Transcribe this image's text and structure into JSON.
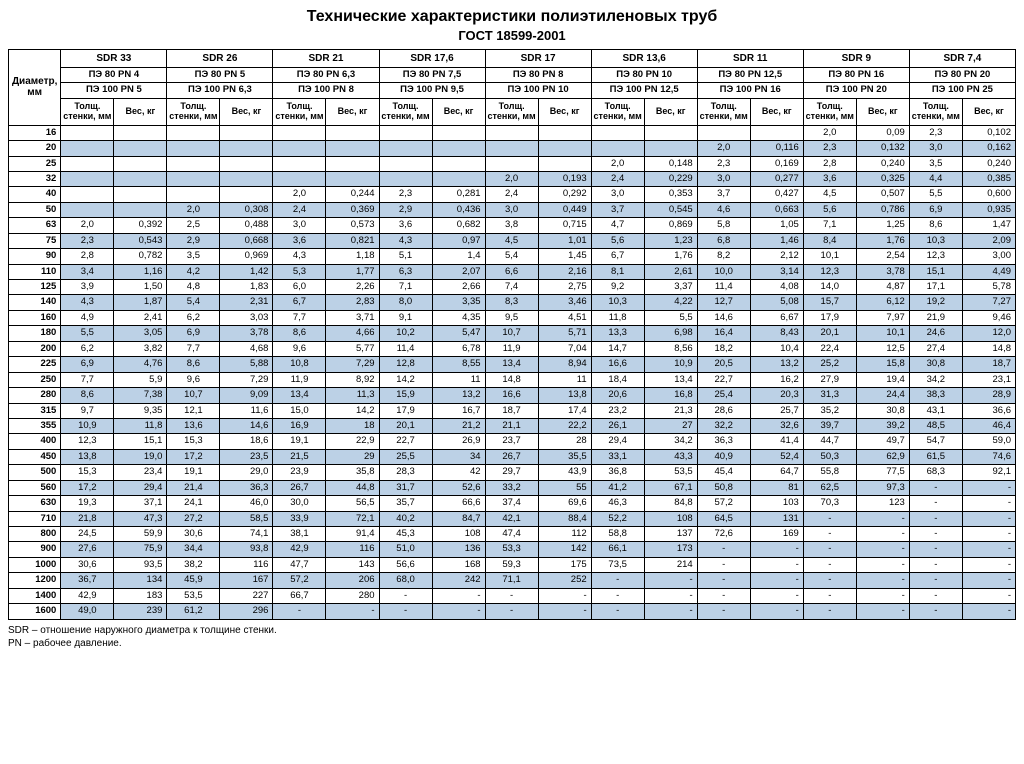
{
  "title": "Технические характеристики полиэтиленовых труб",
  "subtitle": "ГОСТ 18599-2001",
  "diam_header": "Диаметр, мм",
  "thick_header": "Толщ. стенки, мм",
  "weight_header": "Вес, кг",
  "footer": [
    "SDR – отношение наружного диаметра к толщине стенки.",
    "PN – рабочее давление."
  ],
  "colors": {
    "band": "#bcd1e6",
    "border": "#000000",
    "background": "#ffffff"
  },
  "sdr": [
    "SDR 33",
    "SDR 26",
    "SDR 21",
    "SDR 17,6",
    "SDR 17",
    "SDR 13,6",
    "SDR 11",
    "SDR 9",
    "SDR 7,4"
  ],
  "pe80": [
    "ПЭ 80 PN 4",
    "ПЭ 80 PN 5",
    "ПЭ 80 PN 6,3",
    "ПЭ 80 PN 7,5",
    "ПЭ 80 PN 8",
    "ПЭ 80 PN 10",
    "ПЭ 80 PN 12,5",
    "ПЭ 80 PN 16",
    "ПЭ 80 PN 20"
  ],
  "pe100": [
    "ПЭ 100 PN 5",
    "ПЭ 100 PN 6,3",
    "ПЭ 100 PN 8",
    "ПЭ 100 PN 9,5",
    "ПЭ 100 PN 10",
    "ПЭ 100 PN 12,5",
    "ПЭ 100 PN 16",
    "ПЭ 100 PN 20",
    "ПЭ 100 PN 25"
  ],
  "rows": [
    {
      "d": "16",
      "band": false,
      "v": [
        "",
        "",
        "",
        "",
        "",
        "",
        "",
        "",
        "",
        "",
        "",
        "",
        "",
        "",
        "2,0",
        "0,09",
        "2,3",
        "0,102"
      ]
    },
    {
      "d": "20",
      "band": true,
      "v": [
        "",
        "",
        "",
        "",
        "",
        "",
        "",
        "",
        "",
        "",
        "",
        "",
        "2,0",
        "0,116",
        "2,3",
        "0,132",
        "3,0",
        "0,162"
      ]
    },
    {
      "d": "25",
      "band": false,
      "v": [
        "",
        "",
        "",
        "",
        "",
        "",
        "",
        "",
        "",
        "",
        "2,0",
        "0,148",
        "2,3",
        "0,169",
        "2,8",
        "0,240",
        "3,5",
        "0,240"
      ]
    },
    {
      "d": "32",
      "band": true,
      "v": [
        "",
        "",
        "",
        "",
        "",
        "",
        "",
        "",
        "2,0",
        "0,193",
        "2,4",
        "0,229",
        "3,0",
        "0,277",
        "3,6",
        "0,325",
        "4,4",
        "0,385"
      ]
    },
    {
      "d": "40",
      "band": false,
      "v": [
        "",
        "",
        "",
        "",
        "2,0",
        "0,244",
        "2,3",
        "0,281",
        "2,4",
        "0,292",
        "3,0",
        "0,353",
        "3,7",
        "0,427",
        "4,5",
        "0,507",
        "5,5",
        "0,600"
      ]
    },
    {
      "d": "50",
      "band": true,
      "v": [
        "",
        "",
        "2,0",
        "0,308",
        "2,4",
        "0,369",
        "2,9",
        "0,436",
        "3,0",
        "0,449",
        "3,7",
        "0,545",
        "4,6",
        "0,663",
        "5,6",
        "0,786",
        "6,9",
        "0,935"
      ]
    },
    {
      "d": "63",
      "band": false,
      "v": [
        "2,0",
        "0,392",
        "2,5",
        "0,488",
        "3,0",
        "0,573",
        "3,6",
        "0,682",
        "3,8",
        "0,715",
        "4,7",
        "0,869",
        "5,8",
        "1,05",
        "7,1",
        "1,25",
        "8,6",
        "1,47"
      ]
    },
    {
      "d": "75",
      "band": true,
      "v": [
        "2,3",
        "0,543",
        "2,9",
        "0,668",
        "3,6",
        "0,821",
        "4,3",
        "0,97",
        "4,5",
        "1,01",
        "5,6",
        "1,23",
        "6,8",
        "1,46",
        "8,4",
        "1,76",
        "10,3",
        "2,09"
      ]
    },
    {
      "d": "90",
      "band": false,
      "v": [
        "2,8",
        "0,782",
        "3,5",
        "0,969",
        "4,3",
        "1,18",
        "5,1",
        "1,4",
        "5,4",
        "1,45",
        "6,7",
        "1,76",
        "8,2",
        "2,12",
        "10,1",
        "2,54",
        "12,3",
        "3,00"
      ]
    },
    {
      "d": "110",
      "band": true,
      "v": [
        "3,4",
        "1,16",
        "4,2",
        "1,42",
        "5,3",
        "1,77",
        "6,3",
        "2,07",
        "6,6",
        "2,16",
        "8,1",
        "2,61",
        "10,0",
        "3,14",
        "12,3",
        "3,78",
        "15,1",
        "4,49"
      ]
    },
    {
      "d": "125",
      "band": false,
      "v": [
        "3,9",
        "1,50",
        "4,8",
        "1,83",
        "6,0",
        "2,26",
        "7,1",
        "2,66",
        "7,4",
        "2,75",
        "9,2",
        "3,37",
        "11,4",
        "4,08",
        "14,0",
        "4,87",
        "17,1",
        "5,78"
      ]
    },
    {
      "d": "140",
      "band": true,
      "v": [
        "4,3",
        "1,87",
        "5,4",
        "2,31",
        "6,7",
        "2,83",
        "8,0",
        "3,35",
        "8,3",
        "3,46",
        "10,3",
        "4,22",
        "12,7",
        "5,08",
        "15,7",
        "6,12",
        "19,2",
        "7,27"
      ]
    },
    {
      "d": "160",
      "band": false,
      "v": [
        "4,9",
        "2,41",
        "6,2",
        "3,03",
        "7,7",
        "3,71",
        "9,1",
        "4,35",
        "9,5",
        "4,51",
        "11,8",
        "5,5",
        "14,6",
        "6,67",
        "17,9",
        "7,97",
        "21,9",
        "9,46"
      ]
    },
    {
      "d": "180",
      "band": true,
      "v": [
        "5,5",
        "3,05",
        "6,9",
        "3,78",
        "8,6",
        "4,66",
        "10,2",
        "5,47",
        "10,7",
        "5,71",
        "13,3",
        "6,98",
        "16,4",
        "8,43",
        "20,1",
        "10,1",
        "24,6",
        "12,0"
      ]
    },
    {
      "d": "200",
      "band": false,
      "v": [
        "6,2",
        "3,82",
        "7,7",
        "4,68",
        "9,6",
        "5,77",
        "11,4",
        "6,78",
        "11,9",
        "7,04",
        "14,7",
        "8,56",
        "18,2",
        "10,4",
        "22,4",
        "12,5",
        "27,4",
        "14,8"
      ]
    },
    {
      "d": "225",
      "band": true,
      "v": [
        "6,9",
        "4,76",
        "8,6",
        "5,88",
        "10,8",
        "7,29",
        "12,8",
        "8,55",
        "13,4",
        "8,94",
        "16,6",
        "10,9",
        "20,5",
        "13,2",
        "25,2",
        "15,8",
        "30,8",
        "18,7"
      ]
    },
    {
      "d": "250",
      "band": false,
      "v": [
        "7,7",
        "5,9",
        "9,6",
        "7,29",
        "11,9",
        "8,92",
        "14,2",
        "11",
        "14,8",
        "11",
        "18,4",
        "13,4",
        "22,7",
        "16,2",
        "27,9",
        "19,4",
        "34,2",
        "23,1"
      ]
    },
    {
      "d": "280",
      "band": true,
      "v": [
        "8,6",
        "7,38",
        "10,7",
        "9,09",
        "13,4",
        "11,3",
        "15,9",
        "13,2",
        "16,6",
        "13,8",
        "20,6",
        "16,8",
        "25,4",
        "20,3",
        "31,3",
        "24,4",
        "38,3",
        "28,9"
      ]
    },
    {
      "d": "315",
      "band": false,
      "v": [
        "9,7",
        "9,35",
        "12,1",
        "11,6",
        "15,0",
        "14,2",
        "17,9",
        "16,7",
        "18,7",
        "17,4",
        "23,2",
        "21,3",
        "28,6",
        "25,7",
        "35,2",
        "30,8",
        "43,1",
        "36,6"
      ]
    },
    {
      "d": "355",
      "band": true,
      "v": [
        "10,9",
        "11,8",
        "13,6",
        "14,6",
        "16,9",
        "18",
        "20,1",
        "21,2",
        "21,1",
        "22,2",
        "26,1",
        "27",
        "32,2",
        "32,6",
        "39,7",
        "39,2",
        "48,5",
        "46,4"
      ]
    },
    {
      "d": "400",
      "band": false,
      "v": [
        "12,3",
        "15,1",
        "15,3",
        "18,6",
        "19,1",
        "22,9",
        "22,7",
        "26,9",
        "23,7",
        "28",
        "29,4",
        "34,2",
        "36,3",
        "41,4",
        "44,7",
        "49,7",
        "54,7",
        "59,0"
      ]
    },
    {
      "d": "450",
      "band": true,
      "v": [
        "13,8",
        "19,0",
        "17,2",
        "23,5",
        "21,5",
        "29",
        "25,5",
        "34",
        "26,7",
        "35,5",
        "33,1",
        "43,3",
        "40,9",
        "52,4",
        "50,3",
        "62,9",
        "61,5",
        "74,6"
      ]
    },
    {
      "d": "500",
      "band": false,
      "v": [
        "15,3",
        "23,4",
        "19,1",
        "29,0",
        "23,9",
        "35,8",
        "28,3",
        "42",
        "29,7",
        "43,9",
        "36,8",
        "53,5",
        "45,4",
        "64,7",
        "55,8",
        "77,5",
        "68,3",
        "92,1"
      ]
    },
    {
      "d": "560",
      "band": true,
      "v": [
        "17,2",
        "29,4",
        "21,4",
        "36,3",
        "26,7",
        "44,8",
        "31,7",
        "52,6",
        "33,2",
        "55",
        "41,2",
        "67,1",
        "50,8",
        "81",
        "62,5",
        "97,3",
        "-",
        "-"
      ]
    },
    {
      "d": "630",
      "band": false,
      "v": [
        "19,3",
        "37,1",
        "24,1",
        "46,0",
        "30,0",
        "56,5",
        "35,7",
        "66,6",
        "37,4",
        "69,6",
        "46,3",
        "84,8",
        "57,2",
        "103",
        "70,3",
        "123",
        "-",
        "-"
      ]
    },
    {
      "d": "710",
      "band": true,
      "v": [
        "21,8",
        "47,3",
        "27,2",
        "58,5",
        "33,9",
        "72,1",
        "40,2",
        "84,7",
        "42,1",
        "88,4",
        "52,2",
        "108",
        "64,5",
        "131",
        "-",
        "-",
        "-",
        "-"
      ]
    },
    {
      "d": "800",
      "band": false,
      "v": [
        "24,5",
        "59,9",
        "30,6",
        "74,1",
        "38,1",
        "91,4",
        "45,3",
        "108",
        "47,4",
        "112",
        "58,8",
        "137",
        "72,6",
        "169",
        "-",
        "-",
        "-",
        "-"
      ]
    },
    {
      "d": "900",
      "band": true,
      "v": [
        "27,6",
        "75,9",
        "34,4",
        "93,8",
        "42,9",
        "116",
        "51,0",
        "136",
        "53,3",
        "142",
        "66,1",
        "173",
        "-",
        "-",
        "-",
        "-",
        "-",
        "-"
      ]
    },
    {
      "d": "1000",
      "band": false,
      "v": [
        "30,6",
        "93,5",
        "38,2",
        "116",
        "47,7",
        "143",
        "56,6",
        "168",
        "59,3",
        "175",
        "73,5",
        "214",
        "-",
        "-",
        "-",
        "-",
        "-",
        "-"
      ]
    },
    {
      "d": "1200",
      "band": true,
      "v": [
        "36,7",
        "134",
        "45,9",
        "167",
        "57,2",
        "206",
        "68,0",
        "242",
        "71,1",
        "252",
        "-",
        "-",
        "-",
        "-",
        "-",
        "-",
        "-",
        "-"
      ]
    },
    {
      "d": "1400",
      "band": false,
      "v": [
        "42,9",
        "183",
        "53,5",
        "227",
        "66,7",
        "280",
        "-",
        "-",
        "-",
        "-",
        "-",
        "-",
        "-",
        "-",
        "-",
        "-",
        "-",
        "-"
      ]
    },
    {
      "d": "1600",
      "band": true,
      "v": [
        "49,0",
        "239",
        "61,2",
        "296",
        "-",
        "-",
        "-",
        "-",
        "-",
        "-",
        "-",
        "-",
        "-",
        "-",
        "-",
        "-",
        "-",
        "-"
      ]
    }
  ]
}
